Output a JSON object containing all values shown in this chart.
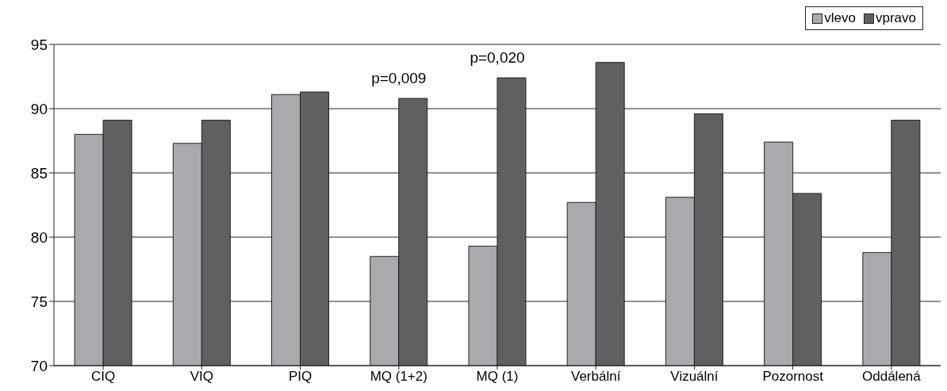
{
  "chart_data": {
    "type": "bar",
    "categories": [
      "CIQ",
      "VIQ",
      "PIQ",
      "MQ (1+2)",
      "MQ (1)",
      "Verbální",
      "Vizuální",
      "Pozornost",
      "Oddálená"
    ],
    "series": [
      {
        "name": "vlevo",
        "color": "#a9aaad",
        "values": [
          88.0,
          87.3,
          91.1,
          78.5,
          79.3,
          82.7,
          83.1,
          87.4,
          78.8
        ]
      },
      {
        "name": "vpravo",
        "color": "#606062",
        "values": [
          89.1,
          89.1,
          91.3,
          90.8,
          92.4,
          93.6,
          89.6,
          83.4,
          89.1
        ]
      }
    ],
    "ylim": [
      70,
      95
    ],
    "yticks": [
      70,
      75,
      80,
      85,
      90,
      95
    ],
    "grid": "y",
    "legend": "top right",
    "annotations": [
      {
        "text": "p=0,009",
        "x": "MQ (1+2)",
        "y": 90.8
      },
      {
        "text": "p=0,020",
        "x": "MQ (1)",
        "y": 92.4
      }
    ]
  }
}
